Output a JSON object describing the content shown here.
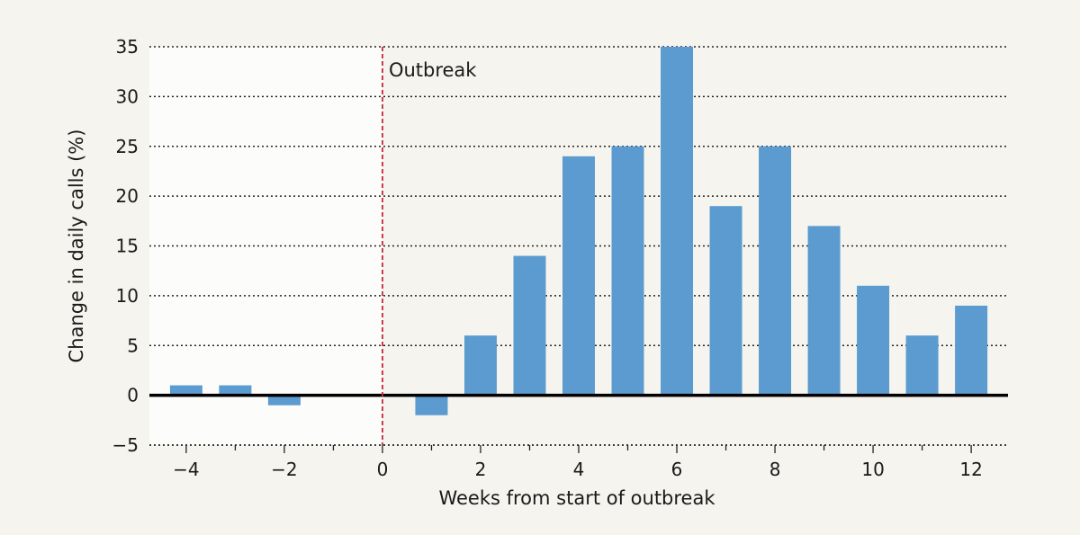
{
  "chart_data": {
    "type": "bar",
    "x": [
      -4,
      -3,
      -2,
      -1,
      0,
      1,
      2,
      3,
      4,
      5,
      6,
      7,
      8,
      9,
      10,
      11,
      12
    ],
    "values": [
      1,
      1,
      -1,
      0,
      0,
      -2,
      6,
      14,
      24,
      25,
      35,
      19,
      25,
      17,
      11,
      6,
      9
    ],
    "xlabel": "Weeks from start of outbreak",
    "ylabel": "Change in daily calls (%)",
    "xlim": [
      -4.75,
      12.75
    ],
    "ylim": [
      -5,
      35
    ],
    "xticks_major": [
      -4,
      -2,
      0,
      2,
      4,
      6,
      8,
      10,
      12
    ],
    "xtick_labels": [
      "−4",
      "−2",
      "0",
      "2",
      "4",
      "6",
      "8",
      "10",
      "12"
    ],
    "yticks": [
      -5,
      0,
      5,
      10,
      15,
      20,
      25,
      30,
      35
    ],
    "ytick_labels": [
      "−5",
      "0",
      "5",
      "10",
      "15",
      "20",
      "25",
      "30",
      "35"
    ],
    "grid": "horizontal-dotted",
    "annotation": {
      "x": 0,
      "label": "Outbreak"
    },
    "colors": {
      "bar": "#5b9bd0",
      "outbreak_line": "#c8283a",
      "pre_outbreak_shade": "#fcfcfb",
      "background": "#f5f4ee"
    }
  }
}
